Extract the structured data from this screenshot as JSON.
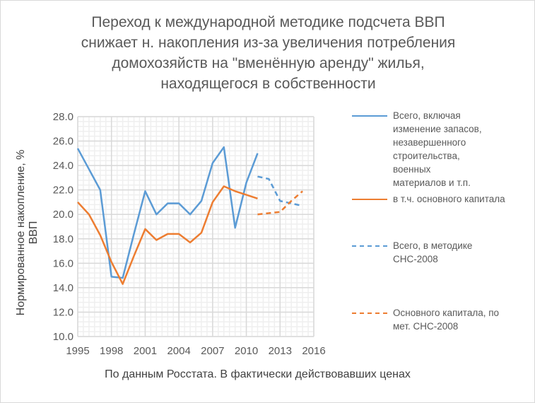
{
  "chart_data": {
    "type": "line",
    "title_lines": [
      "Переход к международной методике подсчета ВВП",
      "снижает н. накопления из-за увеличения потребления",
      "домохозяйств  на \"вменённую аренду\" жилья,",
      "находящегося в собственности"
    ],
    "xlabel": "По данным Росстата. В фактически действовавших ценах",
    "ylabel": "Нормированное накопление, % ВВП",
    "xlim": [
      1995,
      2016
    ],
    "ylim": [
      10,
      28
    ],
    "xticks": [
      "1995",
      "1998",
      "2001",
      "2004",
      "2007",
      "2010",
      "2013",
      "2016"
    ],
    "yticks": [
      "10.0",
      "12.0",
      "14.0",
      "16.0",
      "18.0",
      "20.0",
      "22.0",
      "24.0",
      "26.0",
      "28.0"
    ],
    "grid": true,
    "legend_placement": "right",
    "series": [
      {
        "name": "Всего, включая изменение запасов, незавершенного строительства, военных материалов и т.п.",
        "color": "#5b9bd5",
        "dash": false,
        "x": [
          1995,
          1996,
          1997,
          1998,
          1999,
          2000,
          2001,
          2002,
          2003,
          2004,
          2005,
          2006,
          2007,
          2008,
          2009,
          2010,
          2011
        ],
        "y": [
          25.4,
          23.7,
          22.0,
          14.9,
          14.8,
          18.4,
          21.9,
          20.0,
          20.9,
          20.9,
          20.0,
          21.1,
          24.2,
          25.5,
          18.9,
          22.6,
          25.0
        ]
      },
      {
        "name": "в т.ч. основного капитала",
        "color": "#ed7d31",
        "dash": false,
        "x": [
          1995,
          1996,
          1997,
          1998,
          1999,
          2000,
          2001,
          2002,
          2003,
          2004,
          2005,
          2006,
          2007,
          2008,
          2009,
          2010,
          2011
        ],
        "y": [
          21.0,
          20.0,
          18.3,
          16.1,
          14.3,
          16.6,
          18.8,
          17.9,
          18.4,
          18.4,
          17.7,
          18.5,
          21.0,
          22.3,
          21.9,
          21.6,
          21.3
        ]
      },
      {
        "name": "Всего, в методике СНС-2008",
        "color": "#5b9bd5",
        "dash": true,
        "x": [
          2011,
          2012,
          2013,
          2014,
          2015
        ],
        "y": [
          23.1,
          22.9,
          21.1,
          20.9,
          20.7
        ]
      },
      {
        "name": "Основного капитала, по мет. СНС-2008",
        "color": "#ed7d31",
        "dash": true,
        "x": [
          2011,
          2012,
          2013,
          2014,
          2015
        ],
        "y": [
          20.0,
          20.1,
          20.2,
          21.1,
          21.9
        ]
      }
    ]
  }
}
